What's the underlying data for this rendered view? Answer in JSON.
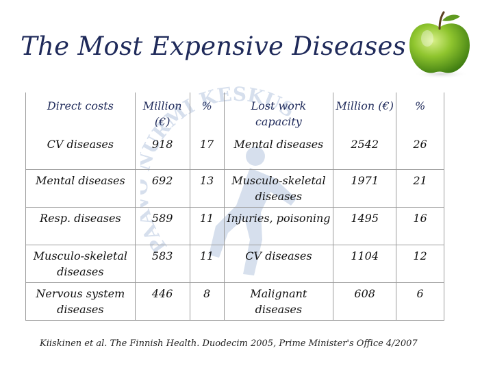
{
  "slide": {
    "title": "The Most Expensive Diseases",
    "source": "Kiiskinen et al. The Finnish Health. Duodecim 2005, Prime Minister's Office 4/2007",
    "accent_color": "#1f2a5a",
    "watermark_text": "PAAVO NURMI KESKUS",
    "decor_image": "green-apple"
  },
  "table": {
    "headers": [
      "Direct costs",
      "Million (€)",
      "%",
      "Lost work capacity",
      "Million (€)",
      "%"
    ],
    "rows": [
      [
        "CV diseases",
        "918",
        "17",
        "Mental diseases",
        "2542",
        "26"
      ],
      [
        "Mental diseases",
        "692",
        "13",
        "Musculo-skeletal diseases",
        "1971",
        "21"
      ],
      [
        "Resp. diseases",
        "589",
        "11",
        "Injuries, poisoning",
        "1495",
        "16"
      ],
      [
        "Musculo-skeletal diseases",
        "583",
        "11",
        "CV diseases",
        "1104",
        "12"
      ],
      [
        "Nervous system diseases",
        "446",
        "8",
        "Malignant diseases",
        "608",
        "6"
      ]
    ]
  }
}
